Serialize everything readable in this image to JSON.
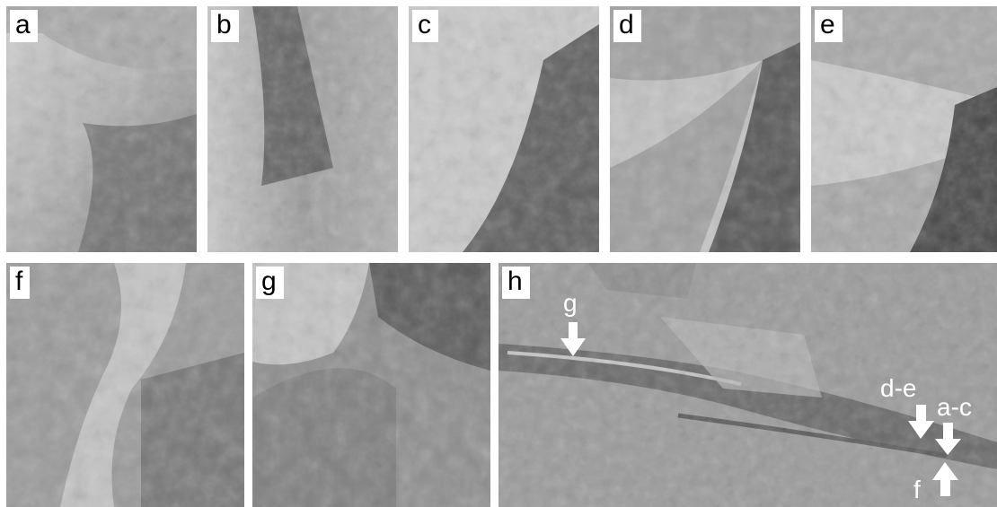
{
  "panels": [
    {
      "id": "a",
      "label": "a"
    },
    {
      "id": "b",
      "label": "b"
    },
    {
      "id": "c",
      "label": "c"
    },
    {
      "id": "d",
      "label": "d"
    },
    {
      "id": "e",
      "label": "e"
    },
    {
      "id": "f",
      "label": "f"
    },
    {
      "id": "g",
      "label": "g"
    },
    {
      "id": "h",
      "label": "h"
    }
  ],
  "context_markers": {
    "g": "g",
    "d_e": "d-e",
    "a_c": "a-c",
    "f": "f"
  },
  "colors": {
    "marker": "#ffffff",
    "label_bg": "#ffffff",
    "label_text": "#000000"
  }
}
